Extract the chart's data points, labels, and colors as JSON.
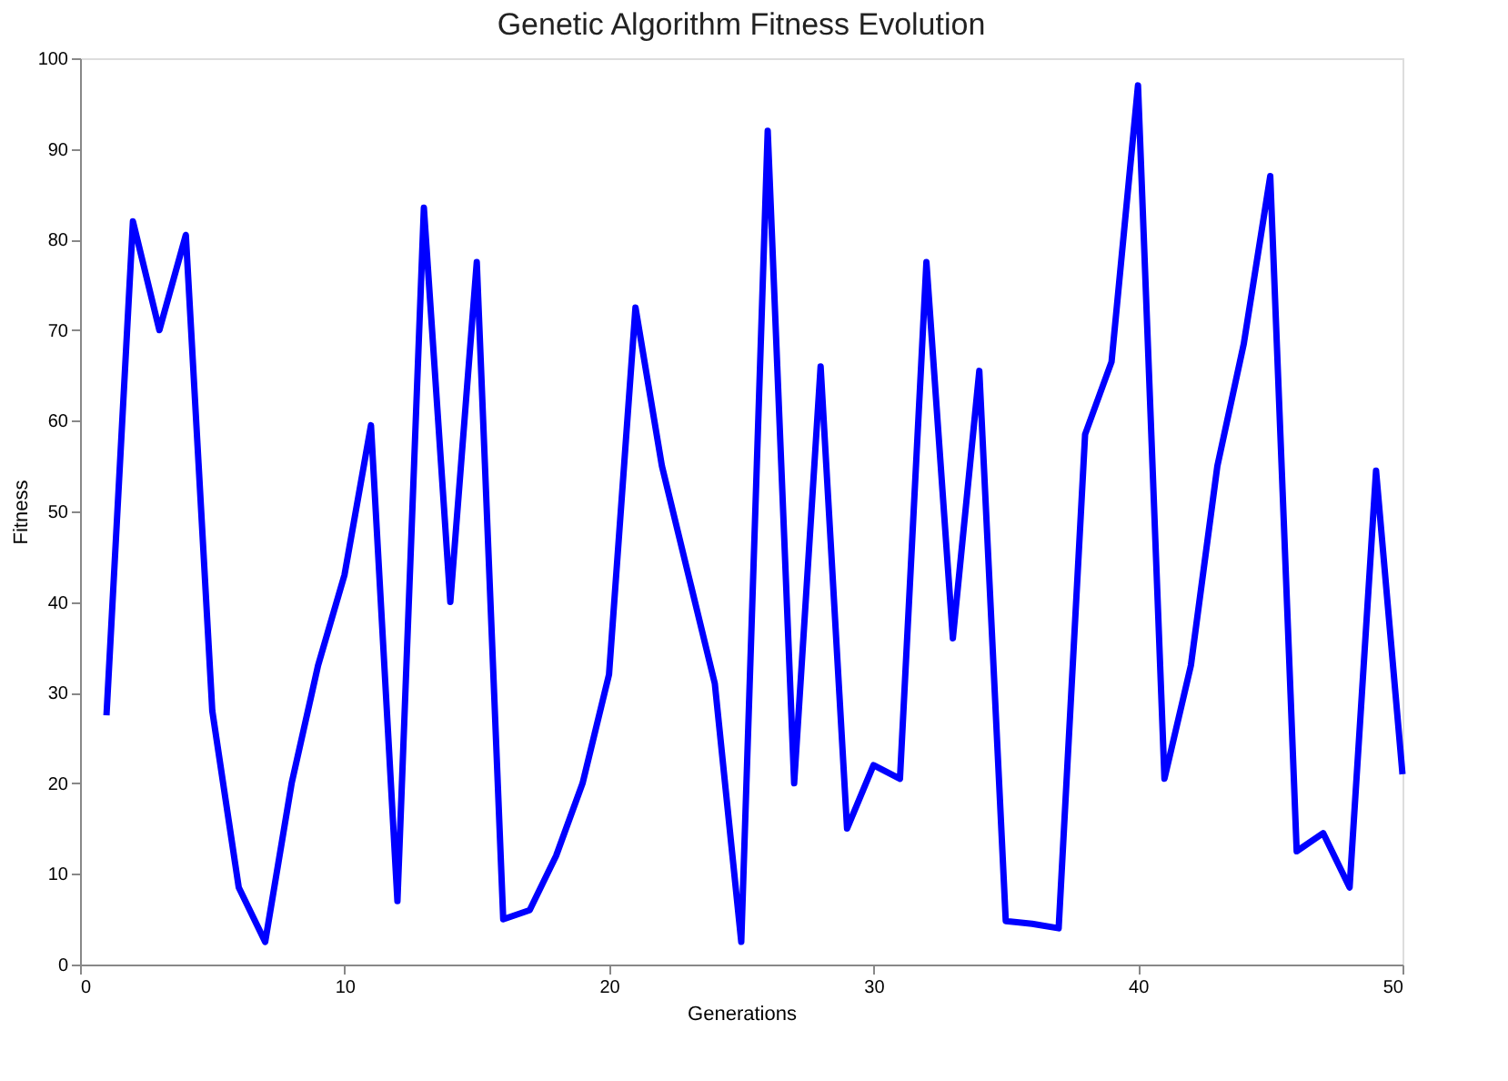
{
  "chart_data": {
    "type": "line",
    "title": "Genetic Algorithm Fitness Evolution",
    "xlabel": "Generations",
    "ylabel": "Fitness",
    "x": [
      1,
      2,
      3,
      4,
      5,
      6,
      7,
      8,
      9,
      10,
      11,
      12,
      13,
      14,
      15,
      16,
      17,
      18,
      19,
      20,
      21,
      22,
      23,
      24,
      25,
      26,
      27,
      28,
      29,
      30,
      31,
      32,
      33,
      34,
      35,
      36,
      37,
      38,
      39,
      40,
      41,
      42,
      43,
      44,
      45,
      46,
      47,
      48,
      49,
      50
    ],
    "series": [
      {
        "color": "#0000ff",
        "values": [
          27.5,
          82,
          70,
          80.5,
          28,
          8.5,
          2.5,
          20,
          33,
          43,
          59.5,
          7,
          83.5,
          40,
          77.5,
          5,
          6,
          12,
          20,
          32,
          72.5,
          55,
          43,
          31,
          2.5,
          92,
          20,
          66,
          15,
          22,
          20.5,
          77.5,
          36,
          65.5,
          4.8,
          4.5,
          4,
          58.5,
          66.5,
          97,
          20.5,
          33,
          55,
          68.5,
          87,
          12.5,
          14.5,
          8.5,
          54.5,
          21
        ]
      }
    ],
    "xlim": [
      0,
      50
    ],
    "xticks": [
      0,
      10,
      20,
      30,
      40,
      50
    ],
    "ylim": [
      0,
      100
    ],
    "yticks": [
      0,
      10,
      20,
      30,
      40,
      50,
      60,
      70,
      80,
      90,
      100
    ],
    "grid": false,
    "marker": "none",
    "line_style": "solid"
  }
}
